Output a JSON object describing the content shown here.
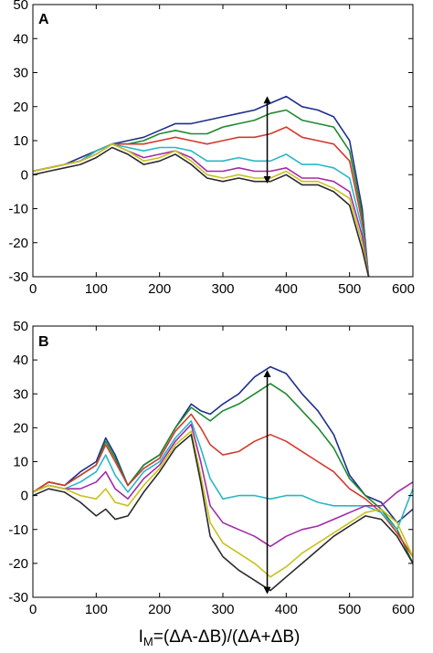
{
  "xlabel": {
    "main": "I",
    "subscript": "M",
    "rest": "=(ΔA-ΔB)/(ΔA+ΔB)"
  },
  "chart_data": [
    {
      "type": "line",
      "panel_label": "A",
      "xlim": [
        0,
        600
      ],
      "ylim": [
        -30,
        50
      ],
      "xticks": [
        "0",
        "100",
        "200",
        "300",
        "400",
        "500",
        "600"
      ],
      "yticks": [
        "-30",
        "-20",
        "-10",
        "0",
        "10",
        "20",
        "30",
        "40",
        "50"
      ],
      "grid": false,
      "legend": "none",
      "arrow": {
        "x": 370,
        "y_start": 22,
        "y_end": -1.5,
        "direction": "both"
      },
      "x": [
        0,
        25,
        50,
        75,
        100,
        125,
        150,
        175,
        200,
        225,
        250,
        275,
        300,
        325,
        350,
        375,
        400,
        425,
        450,
        475,
        500,
        520,
        530
      ],
      "series": [
        {
          "color": "#1f2f8c",
          "values": [
            1,
            2,
            3,
            5,
            7,
            9,
            10,
            11,
            13,
            15,
            15,
            16,
            17,
            18,
            19,
            21,
            23,
            20,
            19,
            17,
            10,
            -10,
            -30
          ]
        },
        {
          "color": "#1e8a2e",
          "values": [
            1,
            2,
            3,
            4,
            7,
            9,
            9,
            10,
            12,
            13,
            12,
            12,
            14,
            15,
            16,
            18,
            19,
            16,
            15,
            14,
            7,
            -12,
            -30
          ]
        },
        {
          "color": "#d23b2c",
          "values": [
            1,
            2,
            3,
            4,
            7,
            9,
            9,
            9,
            10,
            11,
            10,
            9,
            10,
            11,
            11,
            12,
            14,
            11,
            10,
            9,
            4,
            -14,
            -30
          ]
        },
        {
          "color": "#2ab7c4",
          "values": [
            1,
            2,
            3,
            4,
            7,
            9,
            8,
            7,
            8,
            8,
            7,
            4,
            4,
            5,
            4,
            4,
            6,
            3,
            3,
            2,
            -1,
            -16,
            -30
          ]
        },
        {
          "color": "#a22ba8",
          "values": [
            1,
            2,
            3,
            4,
            6,
            9,
            7,
            5,
            6,
            7,
            5,
            1,
            1,
            2,
            1,
            1,
            2,
            -1,
            -1,
            -2,
            -5,
            -18,
            -30
          ]
        },
        {
          "color": "#c8c21a",
          "values": [
            1,
            2,
            3,
            4,
            6,
            9,
            7,
            4,
            5,
            7,
            4,
            0,
            -1,
            0,
            -1,
            -1,
            1,
            -2,
            -2,
            -4,
            -7,
            -20,
            -30
          ]
        },
        {
          "color": "#2b2b2b",
          "values": [
            0,
            1,
            2,
            3,
            5,
            8,
            6,
            3,
            4,
            6,
            3,
            -1,
            -2,
            -1,
            -2,
            -2,
            0,
            -3,
            -3,
            -5,
            -9,
            -22,
            -30
          ]
        }
      ]
    },
    {
      "type": "line",
      "panel_label": "B",
      "xlim": [
        0,
        600
      ],
      "ylim": [
        -30,
        50
      ],
      "xticks": [
        "0",
        "100",
        "200",
        "300",
        "400",
        "500",
        "600"
      ],
      "yticks": [
        "-30",
        "-20",
        "-10",
        "0",
        "10",
        "20",
        "30",
        "40",
        "50"
      ],
      "grid": false,
      "legend": "none",
      "arrow": {
        "x": 370,
        "y_start": 36,
        "y_end": -28,
        "direction": "both"
      },
      "x": [
        0,
        25,
        50,
        75,
        100,
        115,
        130,
        150,
        175,
        200,
        225,
        250,
        265,
        280,
        300,
        325,
        350,
        375,
        400,
        425,
        450,
        475,
        500,
        525,
        550,
        575,
        600
      ],
      "series": [
        {
          "color": "#1f2f8c",
          "values": [
            1,
            4,
            3,
            7,
            10,
            17,
            12,
            3,
            9,
            12,
            20,
            27,
            25,
            24,
            27,
            30,
            35,
            38,
            36,
            30,
            25,
            18,
            6,
            0,
            -2,
            -8,
            -4
          ]
        },
        {
          "color": "#1e8a2e",
          "values": [
            1,
            4,
            3,
            6,
            9,
            16,
            11,
            3,
            9,
            12,
            20,
            26,
            24,
            22,
            25,
            27,
            30,
            33,
            30,
            25,
            20,
            14,
            5,
            0,
            -4,
            -10,
            -20
          ]
        },
        {
          "color": "#d23b2c",
          "values": [
            1,
            4,
            3,
            6,
            9,
            15,
            10,
            3,
            8,
            11,
            19,
            24,
            20,
            15,
            12,
            13,
            16,
            18,
            16,
            13,
            10,
            7,
            2,
            -1,
            -5,
            -11,
            -18
          ]
        },
        {
          "color": "#2ab7c4",
          "values": [
            1,
            3,
            2,
            4,
            7,
            12,
            6,
            1,
            7,
            10,
            17,
            22,
            14,
            5,
            -1,
            0,
            0,
            -1,
            0,
            0,
            -2,
            -3,
            -3,
            -3,
            -5,
            -10,
            2
          ]
        },
        {
          "color": "#a22ba8",
          "values": [
            1,
            3,
            2,
            2,
            4,
            7,
            2,
            -1,
            5,
            9,
            16,
            21,
            10,
            -3,
            -8,
            -10,
            -12,
            -15,
            -12,
            -10,
            -9,
            -7,
            -5,
            -3,
            -3,
            1,
            4
          ]
        },
        {
          "color": "#c8c21a",
          "values": [
            1,
            3,
            2,
            0,
            -1,
            2,
            -2,
            -3,
            3,
            8,
            15,
            19,
            6,
            -8,
            -14,
            -17,
            -20,
            -24,
            -21,
            -17,
            -14,
            -11,
            -8,
            -5,
            -4,
            -8,
            -18
          ]
        },
        {
          "color": "#2b2b2b",
          "values": [
            0,
            2,
            1,
            -2,
            -6,
            -4,
            -7,
            -6,
            1,
            7,
            14,
            18,
            4,
            -12,
            -18,
            -22,
            -25,
            -28,
            -24,
            -20,
            -16,
            -12,
            -9,
            -6,
            -7,
            -12,
            -20
          ]
        }
      ]
    }
  ]
}
